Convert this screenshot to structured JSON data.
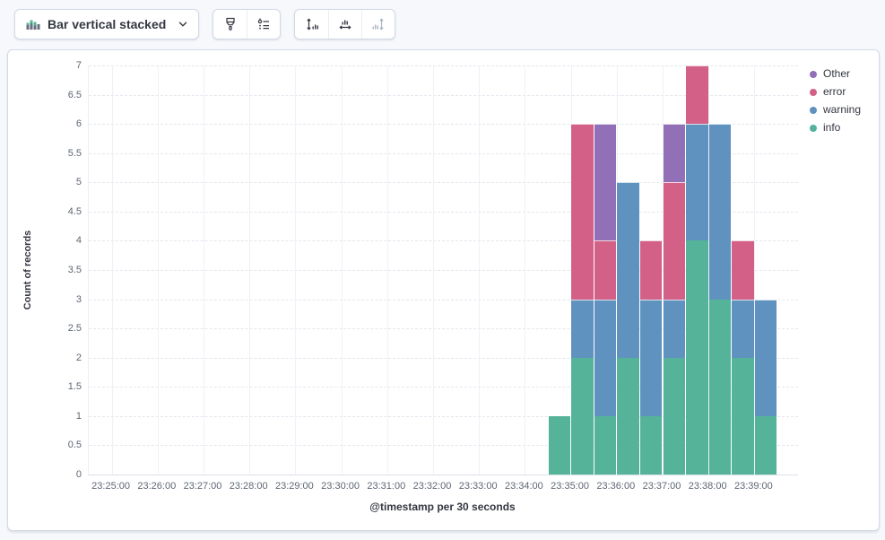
{
  "toolbar": {
    "chart_type_selector": {
      "label": "Bar vertical stacked",
      "icon": "bar-vertical-stacked-icon",
      "chevron_icon": "chevron-down-icon"
    },
    "style_buttons": [
      {
        "name": "visual-options",
        "icon": "brush-icon",
        "disabled": false
      },
      {
        "name": "legend-settings",
        "icon": "legend-list-icon",
        "disabled": false
      }
    ],
    "axis_buttons": [
      {
        "name": "left-axis-settings",
        "icon": "left-axis-icon",
        "disabled": false
      },
      {
        "name": "bottom-axis-settings",
        "icon": "bottom-axis-icon",
        "disabled": false
      },
      {
        "name": "right-axis-settings",
        "icon": "right-axis-icon",
        "disabled": true
      }
    ]
  },
  "chart_data": {
    "type": "bar",
    "stacked": true,
    "orientation": "vertical",
    "xlabel": "@timestamp per 30 seconds",
    "ylabel": "Count of records",
    "ylim": [
      0,
      7
    ],
    "bucket_seconds": 30,
    "grid": {
      "horizontal": "dashed",
      "vertical": "solid"
    },
    "y_ticks": [
      "0",
      "0.5",
      "1",
      "1.5",
      "2",
      "2.5",
      "3",
      "3.5",
      "4",
      "4.5",
      "5",
      "5.5",
      "6",
      "6.5",
      "7"
    ],
    "x_tick_labels": [
      "23:25:00",
      "23:26:00",
      "23:27:00",
      "23:28:00",
      "23:29:00",
      "23:30:00",
      "23:31:00",
      "23:32:00",
      "23:33:00",
      "23:34:00",
      "23:35:00",
      "23:36:00",
      "23:37:00",
      "23:38:00",
      "23:39:00"
    ],
    "bar_times": [
      "23:34:30",
      "23:35:00",
      "23:35:30",
      "23:36:00",
      "23:36:30",
      "23:37:00",
      "23:37:30",
      "23:38:00",
      "23:38:30",
      "23:39:00"
    ],
    "series": [
      {
        "name": "info",
        "color": "#54B399",
        "values": [
          1,
          2,
          1,
          2,
          1,
          2,
          4,
          3,
          2,
          1
        ]
      },
      {
        "name": "warning",
        "color": "#6092C0",
        "values": [
          0,
          1,
          2,
          3,
          2,
          1,
          2,
          3,
          1,
          2
        ]
      },
      {
        "name": "error",
        "color": "#D36086",
        "values": [
          0,
          3,
          1,
          0,
          1,
          2,
          1,
          0,
          1,
          0
        ]
      },
      {
        "name": "Other",
        "color": "#9170B8",
        "values": [
          0,
          0,
          2,
          0,
          0,
          1,
          0,
          0,
          0,
          0
        ]
      }
    ],
    "bar_totals": [
      1,
      6,
      6,
      5,
      4,
      6,
      7,
      6,
      4,
      3
    ],
    "legend": {
      "position": "right",
      "items": [
        {
          "label": "Other",
          "color": "#9170B8"
        },
        {
          "label": "error",
          "color": "#D36086"
        },
        {
          "label": "warning",
          "color": "#6092C0"
        },
        {
          "label": "info",
          "color": "#54B399"
        }
      ]
    }
  }
}
